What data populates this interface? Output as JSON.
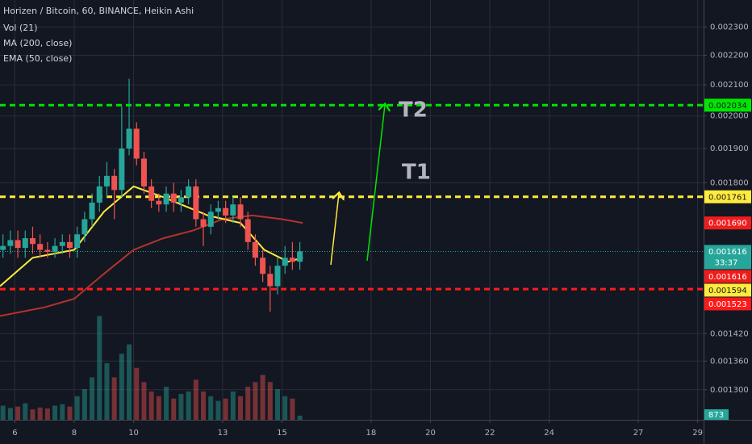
{
  "chart_data": {
    "type": "candlestick",
    "title": "Horizen / Bitcoin, 60, BINANCE, Heikin Ashi",
    "log_scale": true,
    "grid": true,
    "up_color": "#26a69a",
    "down_color": "#ef5350",
    "x": [
      5.6,
      5.85,
      6.1,
      6.35,
      6.6,
      6.85,
      7.1,
      7.35,
      7.6,
      7.85,
      8.1,
      8.35,
      8.6,
      8.85,
      9.1,
      9.35,
      9.6,
      9.85,
      10.1,
      10.35,
      10.6,
      10.85,
      11.1,
      11.35,
      11.6,
      11.85,
      12.1,
      12.35,
      12.6,
      12.85,
      13.1,
      13.35,
      13.6,
      13.85,
      14.1,
      14.35,
      14.6,
      14.85,
      15.1,
      15.35,
      15.6
    ],
    "open": [
      0.00162,
      0.00163,
      0.001645,
      0.001625,
      0.00165,
      0.001635,
      0.00162,
      0.001615,
      0.00163,
      0.00164,
      0.001625,
      0.00166,
      0.0017,
      0.001745,
      0.00179,
      0.00182,
      0.00178,
      0.0019,
      0.00196,
      0.00187,
      0.00179,
      0.00175,
      0.00174,
      0.00177,
      0.001745,
      0.00176,
      0.00179,
      0.0017,
      0.00168,
      0.00172,
      0.00173,
      0.00171,
      0.00174,
      0.0017,
      0.00164,
      0.0016,
      0.00156,
      0.00153,
      0.00158,
      0.0016,
      0.00159
    ],
    "high": [
      0.00166,
      0.00167,
      0.00167,
      0.00167,
      0.00168,
      0.00166,
      0.00164,
      0.00165,
      0.00166,
      0.00166,
      0.00168,
      0.00172,
      0.00177,
      0.00182,
      0.00186,
      0.00184,
      0.00203,
      0.00212,
      0.00198,
      0.00189,
      0.00181,
      0.00177,
      0.00179,
      0.0018,
      0.00178,
      0.00181,
      0.00181,
      0.00172,
      0.00174,
      0.00175,
      0.00175,
      0.00176,
      0.00176,
      0.00172,
      0.00166,
      0.00162,
      0.00158,
      0.0016,
      0.00163,
      0.00164,
      0.00164
    ],
    "low": [
      0.0016,
      0.00161,
      0.0016,
      0.0016,
      0.00161,
      0.0016,
      0.0016,
      0.0016,
      0.00161,
      0.0016,
      0.0016,
      0.00164,
      0.00168,
      0.00172,
      0.00176,
      0.0017,
      0.00176,
      0.00188,
      0.00185,
      0.00177,
      0.00173,
      0.00172,
      0.00172,
      0.00172,
      0.00172,
      0.00174,
      0.00168,
      0.00163,
      0.00166,
      0.0017,
      0.00169,
      0.00169,
      0.00168,
      0.00162,
      0.00158,
      0.00154,
      0.00147,
      0.00151,
      0.00156,
      0.00157,
      0.00157
    ],
    "close": [
      0.00163,
      0.001645,
      0.001625,
      0.00165,
      0.001635,
      0.00162,
      0.001615,
      0.00163,
      0.00164,
      0.001625,
      0.00166,
      0.0017,
      0.001745,
      0.00179,
      0.00182,
      0.00178,
      0.0019,
      0.00196,
      0.00187,
      0.00179,
      0.00175,
      0.00174,
      0.00177,
      0.001745,
      0.00176,
      0.00179,
      0.0017,
      0.00168,
      0.00172,
      0.00173,
      0.00171,
      0.00174,
      0.0017,
      0.00164,
      0.0016,
      0.00156,
      0.00153,
      0.00158,
      0.0016,
      0.00159,
      0.001616
    ],
    "volume": {
      "name": "Vol (21)",
      "lim": [
        0,
        25000
      ],
      "values": [
        3000,
        2500,
        2800,
        3500,
        2200,
        2600,
        2400,
        3000,
        3300,
        2800,
        5000,
        6500,
        9000,
        22000,
        12000,
        9000,
        14000,
        16000,
        11000,
        8000,
        6000,
        5000,
        7000,
        4500,
        5500,
        6000,
        8500,
        6000,
        5000,
        4000,
        4500,
        6000,
        5000,
        7000,
        8000,
        9500,
        8000,
        6500,
        5000,
        4500,
        873
      ]
    },
    "series": [
      {
        "name": "MA (200, close)",
        "color": "#b5332c",
        "x": [
          5.5,
          7,
          8,
          9,
          10,
          11,
          12,
          13,
          14,
          15,
          15.7
        ],
        "values": [
          0.00146,
          0.00148,
          0.0015,
          0.00156,
          0.00162,
          0.00165,
          0.00167,
          0.0017,
          0.00171,
          0.0017,
          0.00169
        ]
      },
      {
        "name": "EMA (50, close)",
        "color": "#ffeb3b",
        "x": [
          5.5,
          6.6,
          8,
          9,
          10,
          11,
          12.5,
          13.6,
          14.4,
          15.2,
          15.7
        ],
        "values": [
          0.00153,
          0.0016,
          0.00162,
          0.00172,
          0.00179,
          0.00176,
          0.00171,
          0.00169,
          0.00162,
          0.00159,
          0.0016
        ]
      }
    ],
    "levels": [
      {
        "value": 0.002034,
        "color": "#00e600"
      },
      {
        "value": 0.001761,
        "color": "#ffeb3b"
      },
      {
        "value": 0.001523,
        "color": "#ff1a1a"
      }
    ],
    "price_labels": [
      {
        "value": 0.00169,
        "label": "0.001690",
        "color": "#ef1c1c"
      },
      {
        "value": 0.001616,
        "color": "#26a69a"
      },
      {
        "value": 0.001616,
        "color": "#ef1c1c"
      },
      {
        "value": 0.001594,
        "color": "#ffeb3b"
      }
    ],
    "countdown": "33:37",
    "annotations": [
      {
        "text": "T1",
        "color": "#ffeb3b"
      },
      {
        "text": "T2",
        "color": "#00e600"
      }
    ],
    "xlim": [
      5.5,
      29.2
    ],
    "xticks": [
      6,
      8,
      10,
      13,
      15,
      18,
      20,
      22,
      24,
      27,
      29
    ],
    "ylim": [
      0.00124,
      0.0024
    ],
    "yticks": [
      {
        "value": 0.0023,
        "label": "0.002300"
      },
      {
        "value": 0.0022,
        "label": "0.002200"
      },
      {
        "value": 0.0021,
        "label": "0.002100"
      },
      {
        "value": 0.002,
        "label": "0.002000"
      },
      {
        "value": 0.0019,
        "label": "0.001900"
      },
      {
        "value": 0.0018,
        "label": "0.001800"
      },
      {
        "value": 0.00142,
        "label": "0.001420"
      },
      {
        "value": 0.00136,
        "label": "0.001360"
      },
      {
        "value": 0.0013,
        "label": "0.001300"
      }
    ]
  }
}
